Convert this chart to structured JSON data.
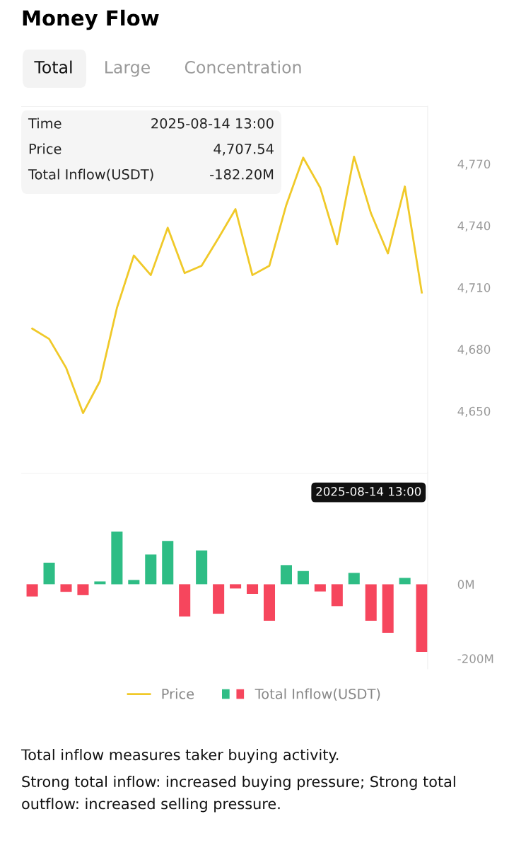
{
  "chart_data": [
    {
      "type": "line",
      "title": "Money Flow",
      "annotations": [
        "Total",
        "Large",
        "Concentration",
        "Time",
        "2025-08-14 13:00",
        "Price",
        "4,707.54",
        "Total Inflow(USDT)",
        "-182.20M"
      ],
      "categories": [
        null,
        null,
        null,
        null,
        null,
        null,
        null,
        null,
        null,
        null,
        null,
        null,
        null,
        null,
        null,
        null,
        null,
        null,
        null,
        null,
        null,
        null,
        null,
        null
      ],
      "series": [
        {
          "name": "Price",
          "color": "#f0c929",
          "values": [
            4690,
            4685,
            4671,
            4649,
            4664.5,
            4700,
            4725.5,
            4716,
            4739,
            4717,
            4720.5,
            4734,
            4748,
            4716,
            4720.5,
            4750,
            4773,
            4758.5,
            4731,
            4773.5,
            4746,
            4726.5,
            4759,
            4707.54
          ]
        }
      ],
      "ylim": [
        4620,
        4798
      ],
      "yticks": [
        {
          "value": 4650,
          "label": "4,650"
        },
        {
          "value": 4680,
          "label": "4,680"
        },
        {
          "value": 4710,
          "label": "4,710"
        },
        {
          "value": 4740,
          "label": "4,740"
        },
        {
          "value": 4770,
          "label": "4,770"
        }
      ],
      "tick_labels": "y",
      "legend": "bottom"
    },
    {
      "type": "bar",
      "categories": [
        null,
        null,
        null,
        null,
        null,
        null,
        null,
        null,
        null,
        null,
        null,
        null,
        null,
        null,
        null,
        null,
        null,
        null,
        null,
        null,
        null,
        null,
        null,
        null
      ],
      "series": [
        {
          "name": "Total Inflow(USDT)",
          "values": [
            -33,
            58,
            -20.5,
            -29.5,
            7.5,
            142,
            11.5,
            80,
            116.5,
            -87,
            91,
            -79.5,
            -11.5,
            -26,
            -98.5,
            51.5,
            35.5,
            -19.5,
            -59,
            30.5,
            -98.5,
            -131,
            17,
            -182.2
          ],
          "colors": [
            "#f6465d",
            "#2ebd85",
            "#f6465d",
            "#f6465d",
            "#2ebd85",
            "#2ebd85",
            "#2ebd85",
            "#2ebd85",
            "#2ebd85",
            "#f6465d",
            "#2ebd85",
            "#f6465d",
            "#f6465d",
            "#f6465d",
            "#f6465d",
            "#2ebd85",
            "#2ebd85",
            "#f6465d",
            "#f6465d",
            "#2ebd85",
            "#f6465d",
            "#f6465d",
            "#2ebd85",
            "#f6465d"
          ]
        }
      ],
      "ylim": [
        -228,
        300
      ],
      "yticks": [
        {
          "value": -200,
          "label": "-200M"
        },
        {
          "value": 0,
          "label": "0M"
        }
      ],
      "tick_labels": "y",
      "annotations": [
        "2025-08-14 13:00",
        "Total inflow measures taker buying activity.",
        "Strong total inflow: increased buying pressure; Strong total outflow: increased selling pressure."
      ],
      "legend": "bottom"
    }
  ]
}
